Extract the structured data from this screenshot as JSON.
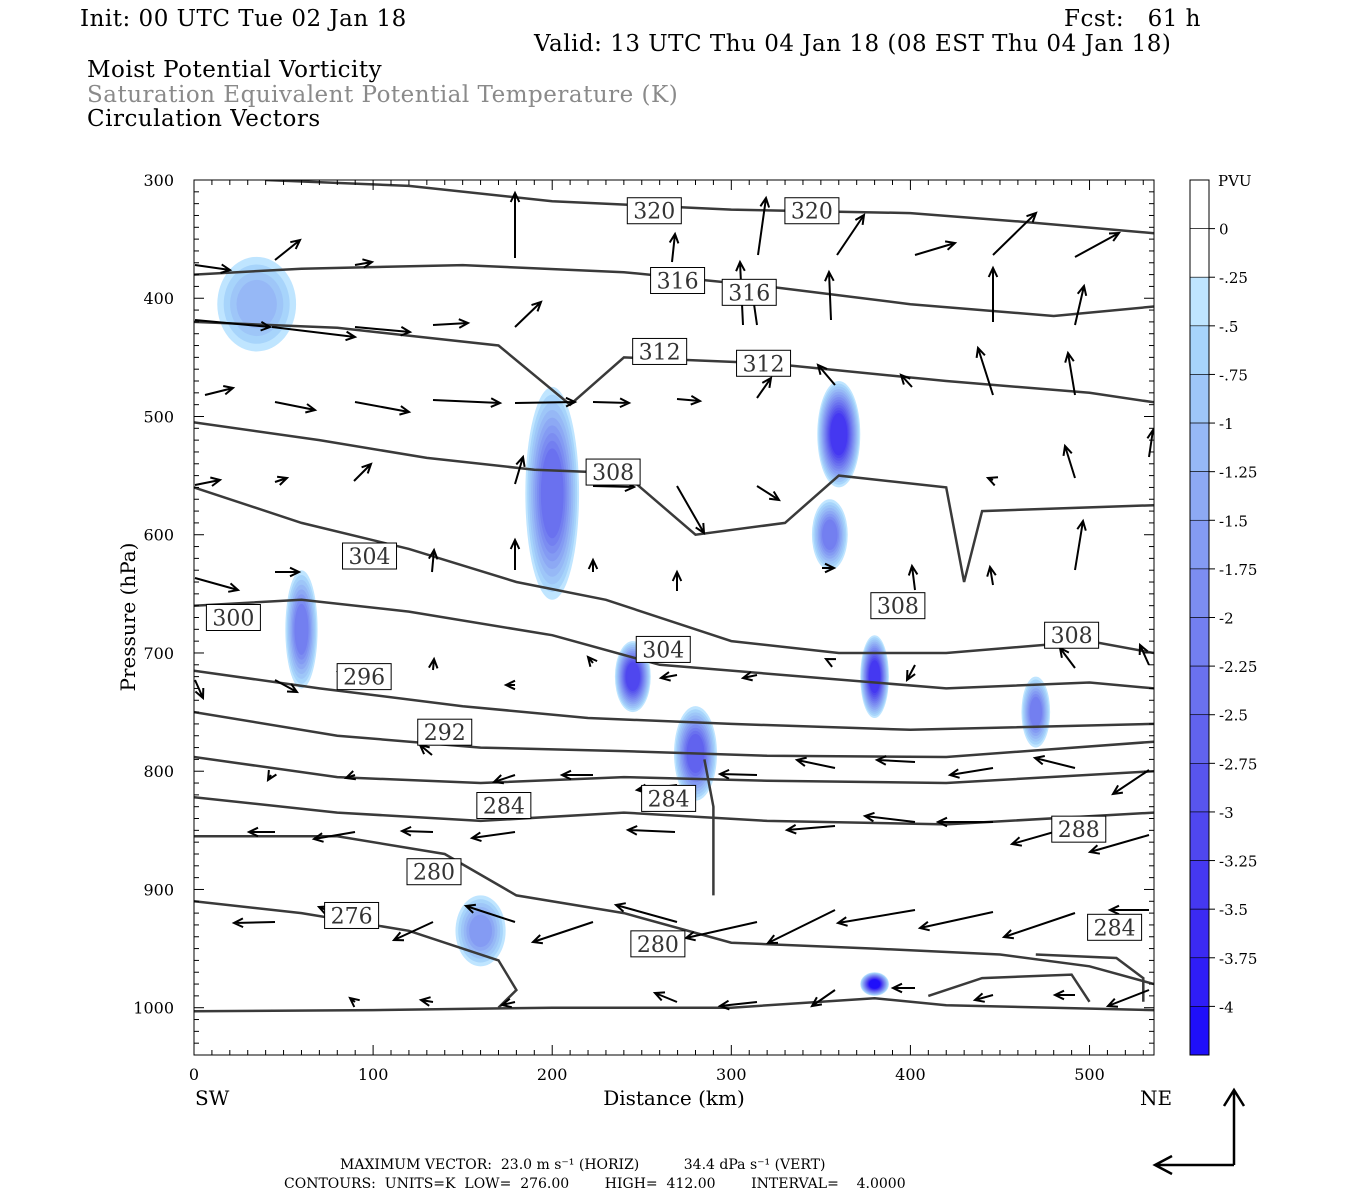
{
  "header": {
    "init": "Init: 00 UTC Tue 02 Jan 18",
    "fcst": "Fcst:   61 h",
    "valid": "Valid: 13 UTC Thu 04 Jan 18 (08 EST Thu 04 Jan 18)",
    "field1": "Moist Potential Vorticity",
    "field2": "Saturation Equivalent Potential Temperature (K)",
    "field3": "Circulation Vectors"
  },
  "footer": {
    "max_vector": "MAXIMUM VECTOR:  23.0 m s⁻¹ (HORIZ)          34.4 dPa s⁻¹ (VERT)",
    "contours": "CONTOURS:  UNITS=K  LOW=  276.00        HIGH=  412.00        INTERVAL=    4.0000"
  },
  "colors": {
    "contour": "#3a3a3a",
    "vector": "#000000",
    "pv_scale": [
      "#ffffff",
      "#ffffff",
      "#bfe5ff",
      "#a7d4fb",
      "#9ec6f8",
      "#96b8f6",
      "#8da9f4",
      "#849bf3",
      "#7c8df1",
      "#737ff0",
      "#6a71ef",
      "#6163ee",
      "#5855ee",
      "#4f47ef",
      "#4538f1",
      "#3b2af3",
      "#2f1df6",
      "#1f0ffa"
    ]
  },
  "chart_data": {
    "type": "cross-section",
    "xlabel": "Distance (km)",
    "ylabel": "Pressure (hPa)",
    "xlim": [
      0,
      536
    ],
    "ylim": [
      1040,
      300
    ],
    "x_ticks": [
      0,
      100,
      200,
      300,
      400,
      500
    ],
    "y_ticks": [
      300,
      400,
      500,
      600,
      700,
      800,
      900,
      1000
    ],
    "x_end_labels": {
      "left": "SW",
      "right": "NE"
    },
    "colorbar": {
      "title": "PVU",
      "labels": [
        "0",
        "-.25",
        "-.5",
        "-.75",
        "-1",
        "-1.25",
        "-1.5",
        "-1.75",
        "-2",
        "-2.25",
        "-2.5",
        "-2.75",
        "-3",
        "-3.25",
        "-3.5",
        "-3.75",
        "-4"
      ]
    },
    "pv_blobs": [
      {
        "x": 35,
        "p": 405,
        "rx": 22,
        "rp": 40,
        "pv": -1.0
      },
      {
        "x": 60,
        "p": 680,
        "rx": 9,
        "rp": 50,
        "pv": -2.0
      },
      {
        "x": 200,
        "p": 565,
        "rx": 15,
        "rp": 90,
        "pv": -2.25
      },
      {
        "x": 245,
        "p": 720,
        "rx": 10,
        "rp": 30,
        "pv": -3.0
      },
      {
        "x": 280,
        "p": 785,
        "rx": 12,
        "rp": 40,
        "pv": -2.5
      },
      {
        "x": 360,
        "p": 515,
        "rx": 12,
        "rp": 45,
        "pv": -3.25
      },
      {
        "x": 355,
        "p": 600,
        "rx": 10,
        "rp": 30,
        "pv": -2.0
      },
      {
        "x": 380,
        "p": 720,
        "rx": 8,
        "rp": 35,
        "pv": -3.25
      },
      {
        "x": 470,
        "p": 750,
        "rx": 8,
        "rp": 30,
        "pv": -2.0
      },
      {
        "x": 160,
        "p": 935,
        "rx": 14,
        "rp": 30,
        "pv": -1.5
      },
      {
        "x": 380,
        "p": 980,
        "rx": 8,
        "rp": 10,
        "pv": -4.0
      }
    ],
    "contour_labels": [
      {
        "x": 257,
        "p": 326,
        "text": "320"
      },
      {
        "x": 345,
        "p": 326,
        "text": "320"
      },
      {
        "x": 270,
        "p": 385,
        "text": "316"
      },
      {
        "x": 310,
        "p": 395,
        "text": "316"
      },
      {
        "x": 260,
        "p": 445,
        "text": "312"
      },
      {
        "x": 318,
        "p": 455,
        "text": "312"
      },
      {
        "x": 234,
        "p": 547,
        "text": "308"
      },
      {
        "x": 98,
        "p": 618,
        "text": "304"
      },
      {
        "x": 22,
        "p": 670,
        "text": "300"
      },
      {
        "x": 262,
        "p": 697,
        "text": "304"
      },
      {
        "x": 393,
        "p": 660,
        "text": "308"
      },
      {
        "x": 490,
        "p": 685,
        "text": "308"
      },
      {
        "x": 95,
        "p": 720,
        "text": "296"
      },
      {
        "x": 140,
        "p": 767,
        "text": "292"
      },
      {
        "x": 173,
        "p": 829,
        "text": "284"
      },
      {
        "x": 265,
        "p": 823,
        "text": "284"
      },
      {
        "x": 134,
        "p": 885,
        "text": "280"
      },
      {
        "x": 88,
        "p": 922,
        "text": "276"
      },
      {
        "x": 259,
        "p": 946,
        "text": "280"
      },
      {
        "x": 494,
        "p": 849,
        "text": "288"
      },
      {
        "x": 514,
        "p": 932,
        "text": "284"
      }
    ]
  }
}
